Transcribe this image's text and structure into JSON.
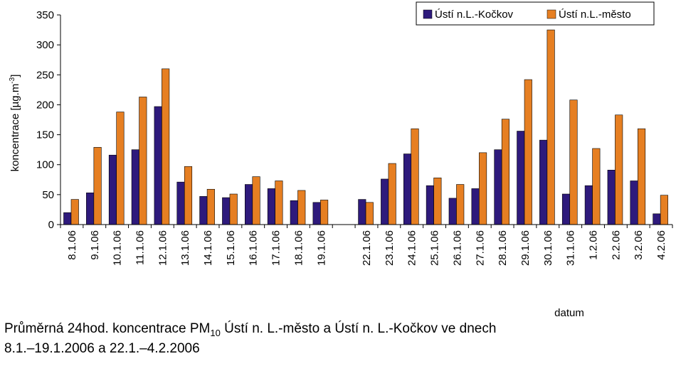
{
  "chart_data": {
    "type": "bar",
    "ylabel_main": "koncentrace [µg.m",
    "ylabel_sup": "-3",
    "ylabel_end": "]",
    "xlabel": "datum",
    "ylim": [
      0,
      350
    ],
    "yticks": [
      0,
      50,
      100,
      150,
      200,
      250,
      300,
      350
    ],
    "grid": false,
    "legend_position": "top-right",
    "categories": [
      "8.1.06",
      "9.1.06",
      "10.1.06",
      "11.1.06",
      "12.1.06",
      "13.1.06",
      "14.1.06",
      "15.1.06",
      "16.1.06",
      "17.1.06",
      "18.1.06",
      "19.1.06",
      "",
      "22.1.06",
      "23.1.06",
      "24.1.06",
      "25.1.06",
      "26.1.06",
      "27.1.06",
      "28.1.06",
      "29.1.06",
      "30.1.06",
      "31.1.06",
      "1.2.06",
      "2.2.06",
      "3.2.06",
      "4.2.06"
    ],
    "series": [
      {
        "name": "Ústí n.L.-Kočkov",
        "color": "#2e1a7c",
        "values": [
          20,
          53,
          116,
          125,
          197,
          71,
          47,
          45,
          67,
          60,
          40,
          37,
          null,
          42,
          76,
          118,
          65,
          44,
          60,
          125,
          156,
          141,
          51,
          65,
          91,
          73,
          18
        ]
      },
      {
        "name": "Ústí n.L.-město",
        "color": "#e67f22",
        "values": [
          42,
          129,
          188,
          213,
          260,
          97,
          59,
          51,
          80,
          73,
          57,
          41,
          null,
          37,
          102,
          160,
          78,
          67,
          120,
          176,
          242,
          325,
          208,
          127,
          183,
          160,
          49
        ]
      }
    ]
  },
  "caption": {
    "line1_a": "Průměrná 24hod. koncentrace PM",
    "line1_sub": "10",
    "line1_b": " Ústí n. L.-město a Ústí n. L.-Kočkov ve dnech",
    "line2": "8.1.–19.1.2006 a 22.1.–4.2.2006"
  }
}
